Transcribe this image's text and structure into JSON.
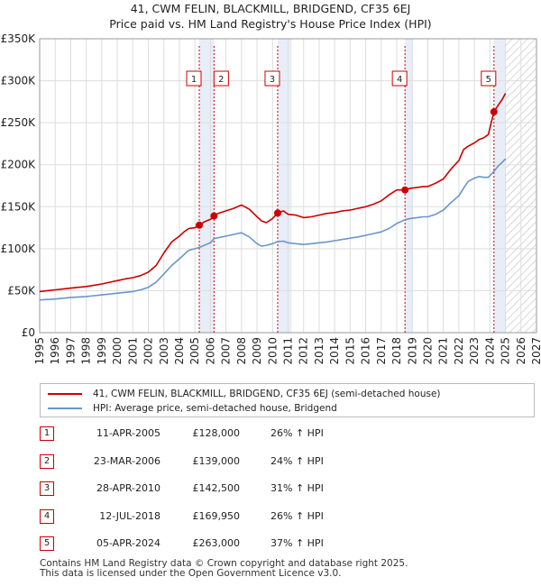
{
  "chart_data": {
    "type": "line",
    "title": "41, CWM FELIN, BLACKMILL, BRIDGEND, CF35 6EJ",
    "subtitle": "Price paid vs. HM Land Registry's House Price Index (HPI)",
    "xlim": [
      1995,
      2027
    ],
    "ylim": [
      0,
      350000
    ],
    "x_ticks": [
      "1995",
      "1996",
      "1997",
      "1998",
      "1999",
      "2000",
      "2001",
      "2002",
      "2003",
      "2004",
      "2005",
      "2006",
      "2007",
      "2008",
      "2009",
      "2010",
      "2011",
      "2012",
      "2013",
      "2014",
      "2015",
      "2016",
      "2017",
      "2018",
      "2019",
      "2020",
      "2021",
      "2022",
      "2023",
      "2024",
      "2025",
      "2026",
      "2027"
    ],
    "y_ticks": [
      {
        "value": 0,
        "label": "£0"
      },
      {
        "value": 50000,
        "label": "£50K"
      },
      {
        "value": 100000,
        "label": "£100K"
      },
      {
        "value": 150000,
        "label": "£150K"
      },
      {
        "value": 200000,
        "label": "£200K"
      },
      {
        "value": 250000,
        "label": "£250K"
      },
      {
        "value": 300000,
        "label": "£300K"
      },
      {
        "value": 350000,
        "label": "£350K"
      }
    ],
    "grid": true,
    "forecast_start": 2025.0,
    "series": [
      {
        "name": "41, CWM FELIN, BLACKMILL, BRIDGEND, CF35 6EJ (semi-detached house)",
        "color": "#cc0000",
        "x": [
          1995.0,
          1995.5,
          1996.0,
          1996.5,
          1997.0,
          1997.5,
          1998.0,
          1998.5,
          1999.0,
          1999.5,
          2000.0,
          2000.5,
          2001.0,
          2001.5,
          2002.0,
          2002.5,
          2003.0,
          2003.5,
          2004.0,
          2004.3,
          2004.6,
          2005.0,
          2005.28,
          2005.6,
          2006.0,
          2006.23,
          2006.5,
          2007.0,
          2007.5,
          2008.0,
          2008.5,
          2009.0,
          2009.3,
          2009.6,
          2010.0,
          2010.33,
          2010.7,
          2011.0,
          2011.5,
          2012.0,
          2012.5,
          2013.0,
          2013.5,
          2014.0,
          2014.5,
          2015.0,
          2015.5,
          2016.0,
          2016.5,
          2017.0,
          2017.5,
          2018.0,
          2018.53,
          2018.9,
          2019.3,
          2019.7,
          2020.0,
          2020.5,
          2021.0,
          2021.5,
          2022.0,
          2022.3,
          2022.6,
          2023.0,
          2023.3,
          2023.6,
          2023.9,
          2024.26,
          2024.5,
          2024.8,
          2025.0
        ],
        "y": [
          49000,
          50000,
          51000,
          52000,
          53000,
          54000,
          55000,
          56500,
          58000,
          60000,
          62000,
          64000,
          65500,
          68000,
          72000,
          80000,
          95000,
          108000,
          115000,
          120000,
          124000,
          125000,
          128000,
          132000,
          135000,
          139000,
          142000,
          145000,
          148000,
          152000,
          147000,
          138000,
          133000,
          131000,
          136000,
          142500,
          145000,
          141000,
          140000,
          137000,
          138000,
          140000,
          142000,
          143000,
          145000,
          146000,
          148000,
          150000,
          153000,
          157000,
          164000,
          170000,
          169950,
          172000,
          173000,
          174000,
          174000,
          178000,
          183000,
          195000,
          205000,
          218000,
          222000,
          226000,
          230000,
          232000,
          236000,
          263000,
          270000,
          278000,
          285000
        ]
      },
      {
        "name": "HPI: Average price, semi-detached house, Bridgend",
        "color": "#6a96c8",
        "x": [
          1995.0,
          1995.5,
          1996.0,
          1996.5,
          1997.0,
          1997.5,
          1998.0,
          1998.5,
          1999.0,
          1999.5,
          2000.0,
          2000.5,
          2001.0,
          2001.5,
          2002.0,
          2002.5,
          2003.0,
          2003.5,
          2004.0,
          2004.3,
          2004.6,
          2005.0,
          2005.28,
          2005.6,
          2006.0,
          2006.23,
          2006.5,
          2007.0,
          2007.5,
          2008.0,
          2008.5,
          2009.0,
          2009.3,
          2009.6,
          2010.0,
          2010.33,
          2010.7,
          2011.0,
          2011.5,
          2012.0,
          2012.5,
          2013.0,
          2013.5,
          2014.0,
          2014.5,
          2015.0,
          2015.5,
          2016.0,
          2016.5,
          2017.0,
          2017.5,
          2018.0,
          2018.53,
          2018.9,
          2019.3,
          2019.7,
          2020.0,
          2020.5,
          2021.0,
          2021.5,
          2022.0,
          2022.3,
          2022.6,
          2023.0,
          2023.3,
          2023.6,
          2023.9,
          2024.26,
          2024.5,
          2024.8,
          2025.0
        ],
        "y": [
          39000,
          39500,
          40000,
          41000,
          42000,
          42500,
          43000,
          44000,
          45000,
          46000,
          47000,
          48000,
          49000,
          51000,
          54000,
          60000,
          70000,
          80000,
          88000,
          93000,
          98000,
          100000,
          101500,
          104000,
          107000,
          112000,
          113000,
          115000,
          117000,
          119000,
          114000,
          106000,
          103000,
          104000,
          106000,
          108500,
          109000,
          107000,
          106000,
          105000,
          106000,
          107000,
          108000,
          109500,
          111000,
          112500,
          114000,
          116000,
          118000,
          120000,
          124000,
          130000,
          134500,
          136000,
          137000,
          138000,
          138000,
          141000,
          146000,
          155000,
          163000,
          172000,
          180000,
          184000,
          186000,
          185000,
          185000,
          192000,
          198000,
          203000,
          207000
        ]
      }
    ],
    "sales": [
      {
        "num": "1",
        "x": 2005.28,
        "price_value": 128000,
        "date": "11-APR-2005",
        "price": "£128,000",
        "hpi": "26% ↑ HPI"
      },
      {
        "num": "2",
        "x": 2006.23,
        "price_value": 139000,
        "date": "23-MAR-2006",
        "price": "£139,000",
        "hpi": "24% ↑ HPI"
      },
      {
        "num": "3",
        "x": 2010.33,
        "price_value": 142500,
        "date": "28-APR-2010",
        "price": "£142,500",
        "hpi": "31% ↑ HPI"
      },
      {
        "num": "4",
        "x": 2018.53,
        "price_value": 169950,
        "date": "12-JUL-2018",
        "price": "£169,950",
        "hpi": "26% ↑ HPI"
      },
      {
        "num": "5",
        "x": 2024.26,
        "price_value": 263000,
        "date": "05-APR-2024",
        "price": "£263,000",
        "hpi": "37% ↑ HPI"
      }
    ]
  },
  "legend": {
    "property_label": "41, CWM FELIN, BLACKMILL, BRIDGEND, CF35 6EJ (semi-detached house)",
    "hpi_label": "HPI: Average price, semi-detached house, Bridgend"
  },
  "footer": {
    "line1": "Contains HM Land Registry data © Crown copyright and database right 2025.",
    "line2": "This data is licensed under the Open Government Licence v3.0."
  },
  "colors": {
    "property": "#cc0000",
    "hpi": "#6a96c8",
    "grid": "#dddddd",
    "highlight": "#e8eef8"
  }
}
